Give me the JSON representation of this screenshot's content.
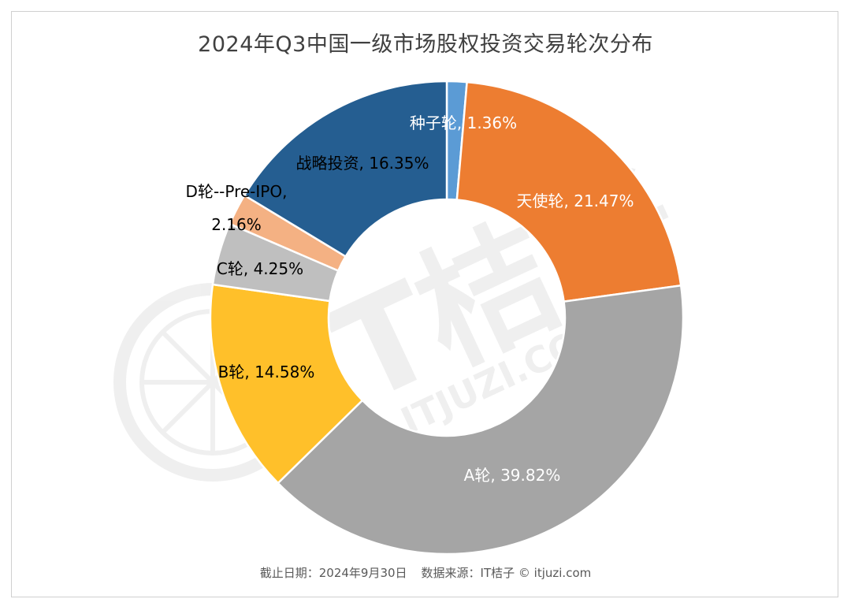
{
  "title": "2024年Q3中国一级市场股权投资交易轮次分布",
  "footer": {
    "date": "截止日期：2024年9月30日",
    "source": "数据来源：IT桔子 © itjuzi.com"
  },
  "watermark": {
    "text": "IT桔子",
    "url": "ITJUZI.COM"
  },
  "chart_data": {
    "type": "pie",
    "donut": true,
    "start": "top",
    "direction": "clockwise",
    "slices": [
      {
        "name": "种子轮",
        "value": 1.36,
        "label_lines": [
          "种子轮, 1.36%"
        ],
        "color": "#5B9BD5",
        "label_color": "#ffffff"
      },
      {
        "name": "天使轮",
        "value": 21.47,
        "label_lines": [
          "天使轮, 21.47%"
        ],
        "color": "#ED7D31",
        "label_color": "#ffffff"
      },
      {
        "name": "A轮",
        "value": 39.82,
        "label_lines": [
          "A轮, 39.82%"
        ],
        "color": "#A5A5A5",
        "label_color": "#ffffff"
      },
      {
        "name": "B轮",
        "value": 14.58,
        "label_lines": [
          "B轮, 14.58%"
        ],
        "color": "#FFC02A",
        "label_color": "#000000"
      },
      {
        "name": "C轮",
        "value": 4.25,
        "label_lines": [
          "C轮, 4.25%"
        ],
        "color": "#BFBFBF",
        "label_color": "#000000"
      },
      {
        "name": "D轮--Pre-IPO",
        "value": 2.16,
        "label_lines": [
          "D轮--Pre-IPO,",
          "2.16%"
        ],
        "color": "#F4B183",
        "label_color": "#000000"
      },
      {
        "name": "战略投资",
        "value": 16.35,
        "label_lines": [
          "战略投资, 16.35%"
        ],
        "color": "#255E91",
        "label_color": "#000000"
      }
    ]
  }
}
